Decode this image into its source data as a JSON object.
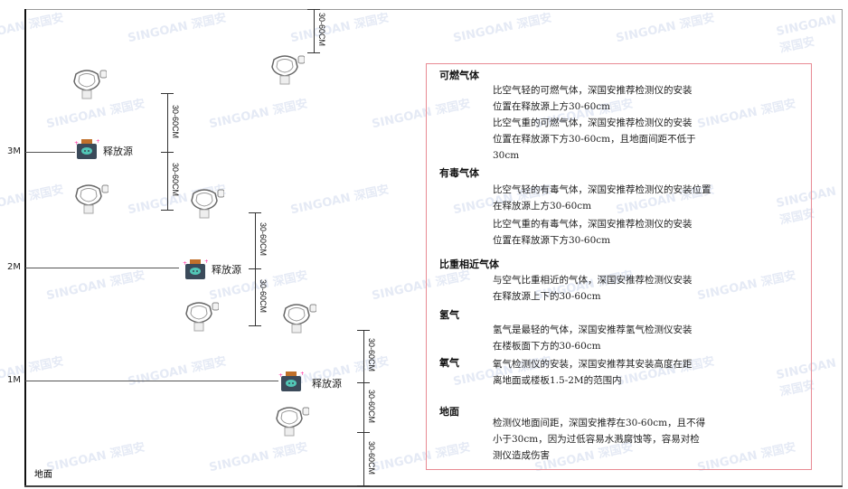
{
  "levels": [
    "3M",
    "2M",
    "1M"
  ],
  "floor_label": "地面",
  "source_label": "释放源",
  "dimension_label": "30-60CM",
  "watermark": "SINGOAN 深国安",
  "colors": {
    "note_border": "#e88a93",
    "source_body": "#3b4a5a",
    "source_cap": "#c0702a",
    "source_face": "#52c6b6"
  },
  "notes": [
    {
      "heading": "可燃气体",
      "paras": [
        "比空气轻的可燃气体，深国安推荐检测仪的安装\n位置在释放源上方30-60cm",
        "比空气重的可燃气体，深国安推荐检测仪的安装\n位置在释放源下方30-60cm，且地面间距不低于\n30cm"
      ]
    },
    {
      "heading": "有毒气体",
      "paras": [
        "比空气轻的有毒气体，深国安推荐检测仪的安装位置\n在释放源上方30-60cm",
        "比空气重的有毒气体，深国安推荐检测仪的安装\n位置在释放源下方30-60cm"
      ]
    },
    {
      "heading": "比重相近气体",
      "paras": [
        "与空气比重相近的气体，深国安推荐检测仪安装\n在释放源上下的30-60cm"
      ]
    },
    {
      "heading": "氢气",
      "paras": [
        "氢气是最轻的气体，深国安推荐氢气检测仪安装\n在楼板面下方的30-60cm"
      ]
    },
    {
      "heading": "氧气",
      "paras": [
        "氧气检测仪的安装，深国安推荐其安装高度在距\n离地面或楼板1.5-2M的范围内"
      ]
    },
    {
      "heading": "地面",
      "paras": [
        "检测仪地面间距，深国安推荐在30-60cm，且不得\n小于30cm，因为过低容易水溅腐蚀等，容易对检\n测仪造成伤害"
      ]
    }
  ]
}
